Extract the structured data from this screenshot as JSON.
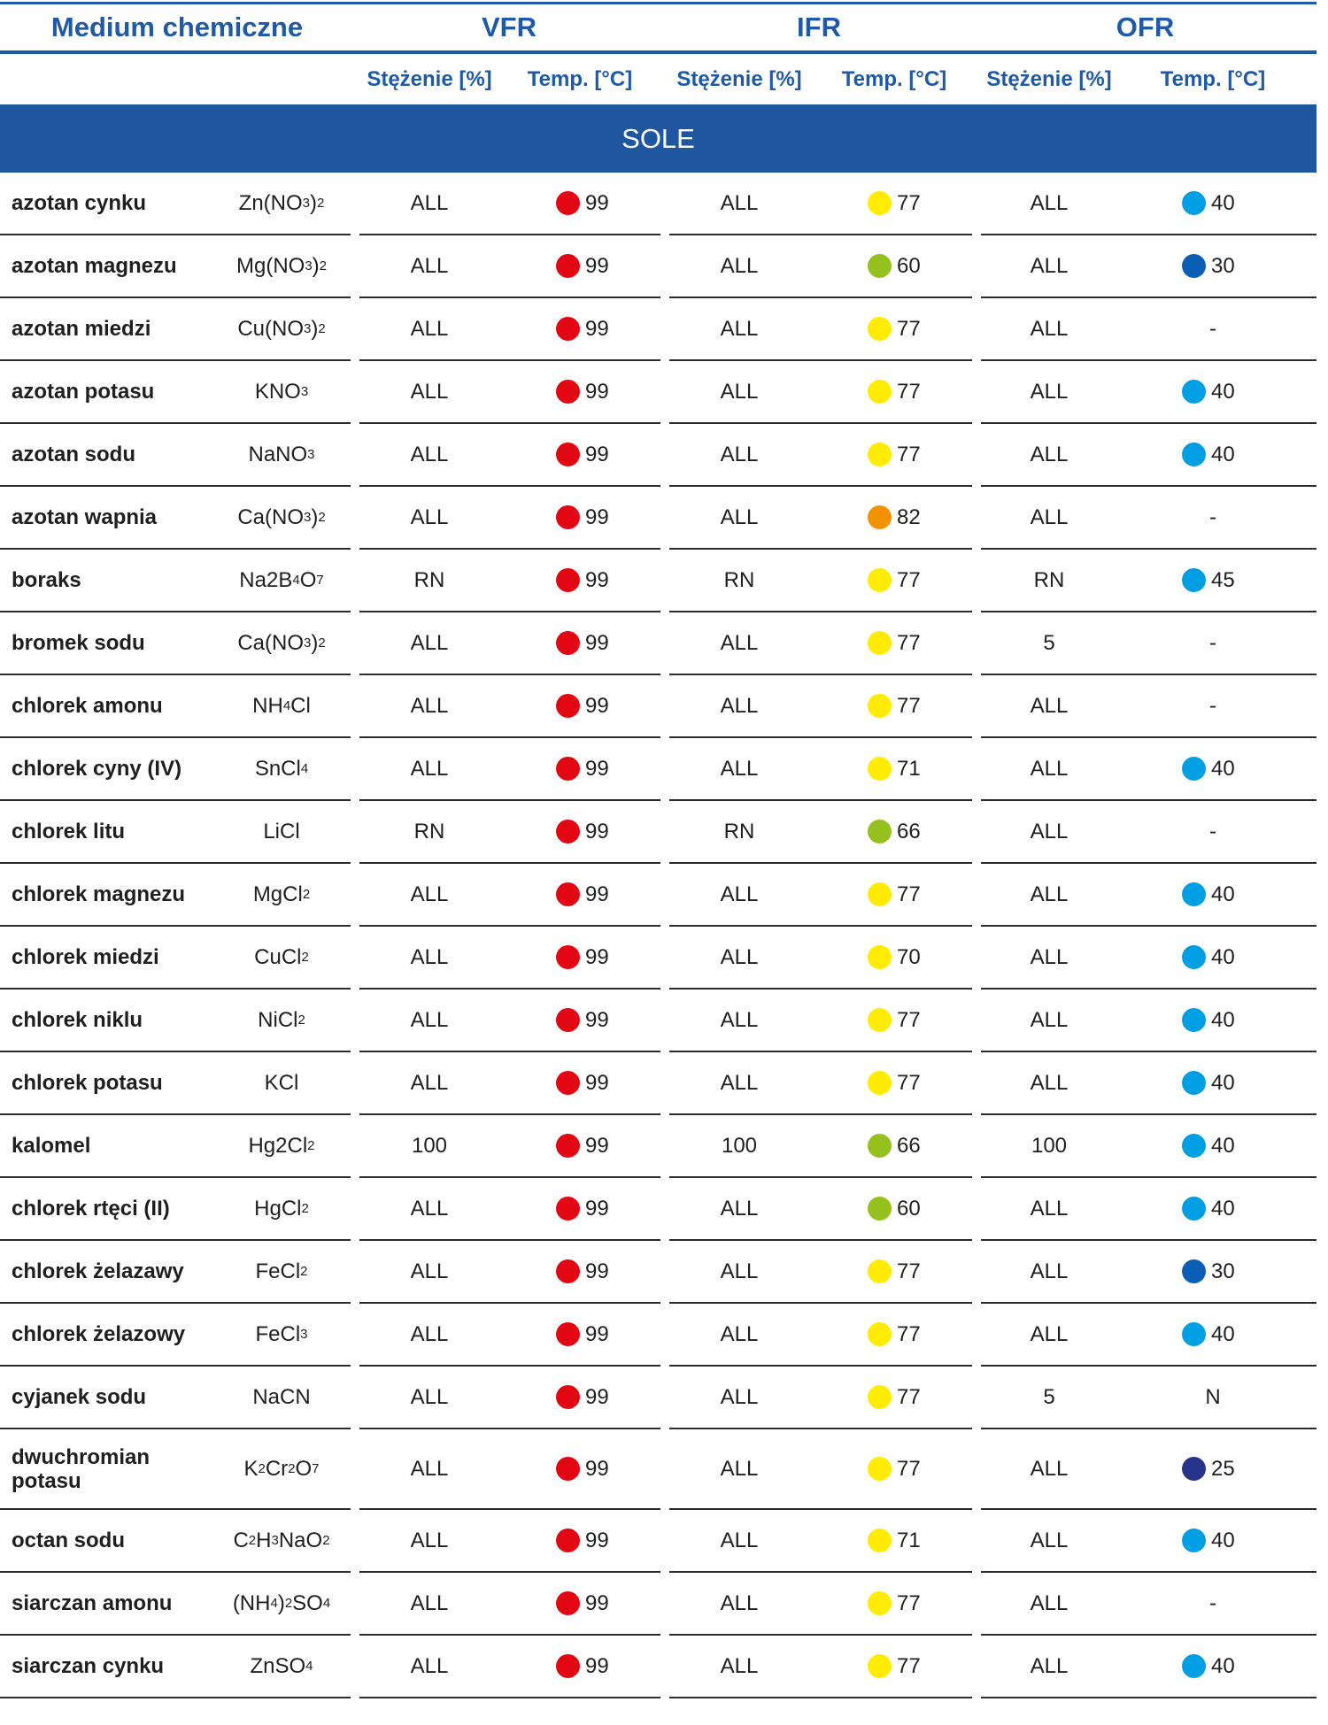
{
  "header": {
    "medium": "Medium chemiczne",
    "groups": [
      "VFR",
      "IFR",
      "OFR"
    ],
    "sub": [
      "Stężenie [%]",
      "Temp. [°C]",
      "Stężenie [%]",
      "Temp. [°C]",
      "Stężenie [%]",
      "Temp. [°C]"
    ]
  },
  "section": "SOLE",
  "colors": {
    "red": "#e30613",
    "yellow": "#ffec00",
    "green": "#95c11f",
    "orange": "#f39200",
    "lightblue": "#009fe3",
    "midblue": "#0a5fb4",
    "darkblue": "#27348b",
    "accent": "#1e5aa8"
  },
  "rows": [
    {
      "name": "azotan cynku",
      "formula": [
        [
          "Zn(NO",
          ""
        ],
        [
          "3",
          "s"
        ],
        [
          ")",
          ""
        ],
        [
          "2",
          "s"
        ]
      ],
      "vfr_c": "ALL",
      "vfr_t": "99",
      "vfr_dot": "red",
      "ifr_c": "ALL",
      "ifr_t": "77",
      "ifr_dot": "yellow",
      "ofr_c": "ALL",
      "ofr_t": "40",
      "ofr_dot": "lightblue"
    },
    {
      "name": "azotan magnezu",
      "formula": [
        [
          "Mg(NO",
          ""
        ],
        [
          "3",
          "s"
        ],
        [
          ")",
          ""
        ],
        [
          "2",
          "s"
        ]
      ],
      "vfr_c": "ALL",
      "vfr_t": "99",
      "vfr_dot": "red",
      "ifr_c": "ALL",
      "ifr_t": "60",
      "ifr_dot": "green",
      "ofr_c": "ALL",
      "ofr_t": "30",
      "ofr_dot": "midblue"
    },
    {
      "name": "azotan miedzi",
      "formula": [
        [
          "Cu(NO",
          ""
        ],
        [
          "3",
          "s"
        ],
        [
          ")",
          ""
        ],
        [
          "2",
          "s"
        ]
      ],
      "vfr_c": "ALL",
      "vfr_t": "99",
      "vfr_dot": "red",
      "ifr_c": "ALL",
      "ifr_t": "77",
      "ifr_dot": "yellow",
      "ofr_c": "ALL",
      "ofr_t": "-",
      "ofr_dot": ""
    },
    {
      "name": "azotan potasu",
      "formula": [
        [
          "KNO",
          ""
        ],
        [
          "3",
          "s"
        ]
      ],
      "vfr_c": "ALL",
      "vfr_t": "99",
      "vfr_dot": "red",
      "ifr_c": "ALL",
      "ifr_t": "77",
      "ifr_dot": "yellow",
      "ofr_c": "ALL",
      "ofr_t": "40",
      "ofr_dot": "lightblue"
    },
    {
      "name": "azotan sodu",
      "formula": [
        [
          "NaNO",
          ""
        ],
        [
          "3",
          "s"
        ]
      ],
      "vfr_c": "ALL",
      "vfr_t": "99",
      "vfr_dot": "red",
      "ifr_c": "ALL",
      "ifr_t": "77",
      "ifr_dot": "yellow",
      "ofr_c": "ALL",
      "ofr_t": "40",
      "ofr_dot": "lightblue"
    },
    {
      "name": "azotan wapnia",
      "formula": [
        [
          "Ca(NO",
          ""
        ],
        [
          "3",
          "s"
        ],
        [
          ")",
          ""
        ],
        [
          "2",
          "s"
        ]
      ],
      "vfr_c": "ALL",
      "vfr_t": "99",
      "vfr_dot": "red",
      "ifr_c": "ALL",
      "ifr_t": "82",
      "ifr_dot": "orange",
      "ofr_c": "ALL",
      "ofr_t": "-",
      "ofr_dot": ""
    },
    {
      "name": "boraks",
      "formula": [
        [
          "Na2B",
          ""
        ],
        [
          "4",
          "s"
        ],
        [
          "O",
          ""
        ],
        [
          "7",
          "s"
        ]
      ],
      "vfr_c": "RN",
      "vfr_t": "99",
      "vfr_dot": "red",
      "ifr_c": "RN",
      "ifr_t": "77",
      "ifr_dot": "yellow",
      "ofr_c": "RN",
      "ofr_t": "45",
      "ofr_dot": "lightblue"
    },
    {
      "name": "bromek sodu",
      "formula": [
        [
          "Ca(NO",
          ""
        ],
        [
          "3",
          "s"
        ],
        [
          ")",
          ""
        ],
        [
          "2",
          "s"
        ]
      ],
      "vfr_c": "ALL",
      "vfr_t": "99",
      "vfr_dot": "red",
      "ifr_c": "ALL",
      "ifr_t": "77",
      "ifr_dot": "yellow",
      "ofr_c": "5",
      "ofr_t": "-",
      "ofr_dot": ""
    },
    {
      "name": "chlorek amonu",
      "formula": [
        [
          "NH",
          ""
        ],
        [
          "4",
          "s"
        ],
        [
          "Cl",
          ""
        ]
      ],
      "vfr_c": "ALL",
      "vfr_t": "99",
      "vfr_dot": "red",
      "ifr_c": "ALL",
      "ifr_t": "77",
      "ifr_dot": "yellow",
      "ofr_c": "ALL",
      "ofr_t": "-",
      "ofr_dot": ""
    },
    {
      "name": "chlorek cyny (IV)",
      "formula": [
        [
          "SnCl",
          ""
        ],
        [
          "4",
          "s"
        ]
      ],
      "vfr_c": "ALL",
      "vfr_t": "99",
      "vfr_dot": "red",
      "ifr_c": "ALL",
      "ifr_t": "71",
      "ifr_dot": "yellow",
      "ofr_c": "ALL",
      "ofr_t": "40",
      "ofr_dot": "lightblue"
    },
    {
      "name": "chlorek litu",
      "formula": [
        [
          "LiCl",
          ""
        ]
      ],
      "vfr_c": "RN",
      "vfr_t": "99",
      "vfr_dot": "red",
      "ifr_c": "RN",
      "ifr_t": "66",
      "ifr_dot": "green",
      "ofr_c": "ALL",
      "ofr_t": "-",
      "ofr_dot": ""
    },
    {
      "name": "chlorek magnezu",
      "formula": [
        [
          "MgCl",
          ""
        ],
        [
          "2",
          "s"
        ]
      ],
      "vfr_c": "ALL",
      "vfr_t": "99",
      "vfr_dot": "red",
      "ifr_c": "ALL",
      "ifr_t": "77",
      "ifr_dot": "yellow",
      "ofr_c": "ALL",
      "ofr_t": "40",
      "ofr_dot": "lightblue"
    },
    {
      "name": "chlorek miedzi",
      "formula": [
        [
          "CuCl",
          ""
        ],
        [
          "2",
          "s"
        ]
      ],
      "vfr_c": "ALL",
      "vfr_t": "99",
      "vfr_dot": "red",
      "ifr_c": "ALL",
      "ifr_t": "70",
      "ifr_dot": "yellow",
      "ofr_c": "ALL",
      "ofr_t": "40",
      "ofr_dot": "lightblue"
    },
    {
      "name": "chlorek niklu",
      "formula": [
        [
          "NiCl",
          ""
        ],
        [
          "2",
          "s"
        ]
      ],
      "vfr_c": "ALL",
      "vfr_t": "99",
      "vfr_dot": "red",
      "ifr_c": "ALL",
      "ifr_t": "77",
      "ifr_dot": "yellow",
      "ofr_c": "ALL",
      "ofr_t": "40",
      "ofr_dot": "lightblue"
    },
    {
      "name": "chlorek potasu",
      "formula": [
        [
          "KCl",
          ""
        ]
      ],
      "vfr_c": "ALL",
      "vfr_t": "99",
      "vfr_dot": "red",
      "ifr_c": "ALL",
      "ifr_t": "77",
      "ifr_dot": "yellow",
      "ofr_c": "ALL",
      "ofr_t": "40",
      "ofr_dot": "lightblue"
    },
    {
      "name": "kalomel",
      "formula": [
        [
          "Hg2Cl",
          ""
        ],
        [
          "2",
          "s"
        ]
      ],
      "vfr_c": "100",
      "vfr_t": "99",
      "vfr_dot": "red",
      "ifr_c": "100",
      "ifr_t": "66",
      "ifr_dot": "green",
      "ofr_c": "100",
      "ofr_t": "40",
      "ofr_dot": "lightblue"
    },
    {
      "name": "chlorek rtęci (II)",
      "formula": [
        [
          "HgCl",
          ""
        ],
        [
          "2",
          "s"
        ]
      ],
      "vfr_c": "ALL",
      "vfr_t": "99",
      "vfr_dot": "red",
      "ifr_c": "ALL",
      "ifr_t": "60",
      "ifr_dot": "green",
      "ofr_c": "ALL",
      "ofr_t": "40",
      "ofr_dot": "lightblue"
    },
    {
      "name": "chlorek żelazawy",
      "formula": [
        [
          "FeCl",
          ""
        ],
        [
          "2",
          "s"
        ]
      ],
      "vfr_c": "ALL",
      "vfr_t": "99",
      "vfr_dot": "red",
      "ifr_c": "ALL",
      "ifr_t": "77",
      "ifr_dot": "yellow",
      "ofr_c": "ALL",
      "ofr_t": "30",
      "ofr_dot": "midblue"
    },
    {
      "name": "chlorek żelazowy",
      "formula": [
        [
          "FeCl",
          ""
        ],
        [
          "3",
          "s"
        ]
      ],
      "vfr_c": "ALL",
      "vfr_t": "99",
      "vfr_dot": "red",
      "ifr_c": "ALL",
      "ifr_t": "77",
      "ifr_dot": "yellow",
      "ofr_c": "ALL",
      "ofr_t": "40",
      "ofr_dot": "lightblue"
    },
    {
      "name": "cyjanek sodu",
      "formula": [
        [
          "NaCN",
          ""
        ]
      ],
      "vfr_c": "ALL",
      "vfr_t": "99",
      "vfr_dot": "red",
      "ifr_c": "ALL",
      "ifr_t": "77",
      "ifr_dot": "yellow",
      "ofr_c": "5",
      "ofr_t": "N",
      "ofr_dot": ""
    },
    {
      "name": "dwuchromian potasu",
      "tall": true,
      "formula": [
        [
          "K",
          ""
        ],
        [
          "2",
          "s"
        ],
        [
          "Cr",
          ""
        ],
        [
          "2",
          "s"
        ],
        [
          "O",
          ""
        ],
        [
          "7",
          "s"
        ]
      ],
      "vfr_c": "ALL",
      "vfr_t": "99",
      "vfr_dot": "red",
      "ifr_c": "ALL",
      "ifr_t": "77",
      "ifr_dot": "yellow",
      "ofr_c": "ALL",
      "ofr_t": "25",
      "ofr_dot": "darkblue"
    },
    {
      "name": "octan sodu",
      "formula": [
        [
          "C",
          ""
        ],
        [
          "2",
          "s"
        ],
        [
          "H",
          ""
        ],
        [
          "3",
          "s"
        ],
        [
          "NaO",
          ""
        ],
        [
          "2",
          "s"
        ]
      ],
      "vfr_c": "ALL",
      "vfr_t": "99",
      "vfr_dot": "red",
      "ifr_c": "ALL",
      "ifr_t": "71",
      "ifr_dot": "yellow",
      "ofr_c": "ALL",
      "ofr_t": "40",
      "ofr_dot": "lightblue"
    },
    {
      "name": "siarczan amonu",
      "formula": [
        [
          "(NH",
          ""
        ],
        [
          "4",
          "s"
        ],
        [
          ")",
          ""
        ],
        [
          "2",
          "s"
        ],
        [
          "SO",
          ""
        ],
        [
          "4",
          "s"
        ]
      ],
      "vfr_c": "ALL",
      "vfr_t": "99",
      "vfr_dot": "red",
      "ifr_c": "ALL",
      "ifr_t": "77",
      "ifr_dot": "yellow",
      "ofr_c": "ALL",
      "ofr_t": "-",
      "ofr_dot": ""
    },
    {
      "name": "siarczan cynku",
      "formula": [
        [
          "ZnSO",
          ""
        ],
        [
          "4",
          "s"
        ]
      ],
      "vfr_c": "ALL",
      "vfr_t": "99",
      "vfr_dot": "red",
      "ifr_c": "ALL",
      "ifr_t": "77",
      "ifr_dot": "yellow",
      "ofr_c": "ALL",
      "ofr_t": "40",
      "ofr_dot": "lightblue"
    }
  ]
}
